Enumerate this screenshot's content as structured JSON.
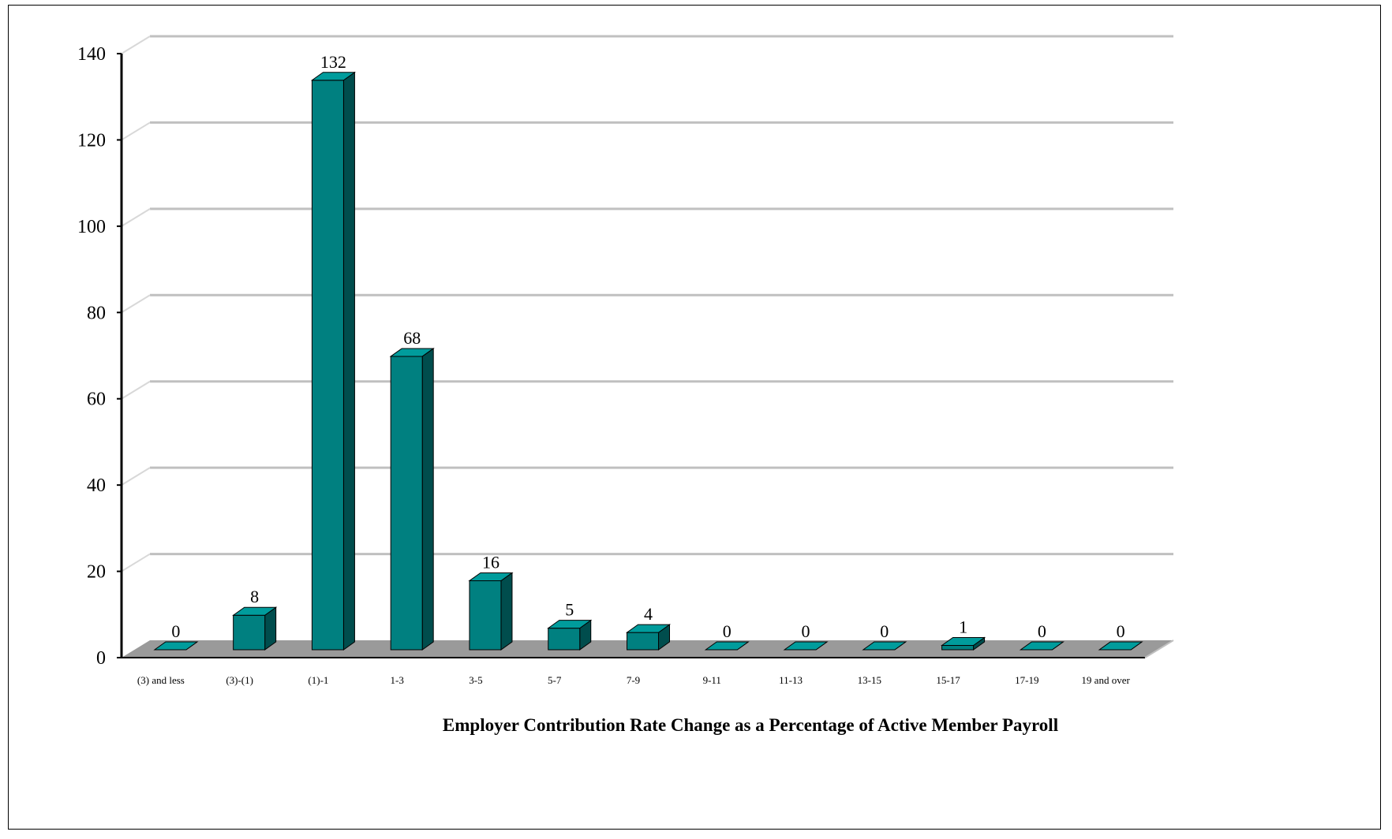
{
  "chart_data": {
    "type": "bar",
    "title": "",
    "xlabel": "Employer Contribution Rate Change as a Percentage of Active Member Payroll",
    "ylabel": "",
    "categories": [
      "(3) and less",
      "(3)-(1)",
      "(1)-1",
      "1-3",
      "3-5",
      "5-7",
      "7-9",
      "9-11",
      "11-13",
      "13-15",
      "15-17",
      "17-19",
      "19 and over"
    ],
    "values": [
      0,
      8,
      132,
      68,
      16,
      5,
      4,
      0,
      0,
      0,
      1,
      0,
      0
    ],
    "value_labels": [
      "0",
      "8",
      "132",
      "68",
      "16",
      "5",
      "4",
      "0",
      "0",
      "0",
      "1",
      "0",
      "0"
    ],
    "ylim": [
      0,
      140
    ],
    "yticks": [
      0,
      20,
      40,
      60,
      80,
      100,
      120,
      140
    ],
    "ytick_labels": [
      "0",
      "20",
      "40",
      "60",
      "80",
      "100",
      "120",
      "140"
    ],
    "grid": true,
    "legend": "none",
    "style": "3d-column",
    "colors": {
      "bar_front": "#008080",
      "bar_top": "#009C9C",
      "bar_side": "#004D4D",
      "floor": "#9A9A9A",
      "gridline": "#C0C0C0"
    }
  }
}
